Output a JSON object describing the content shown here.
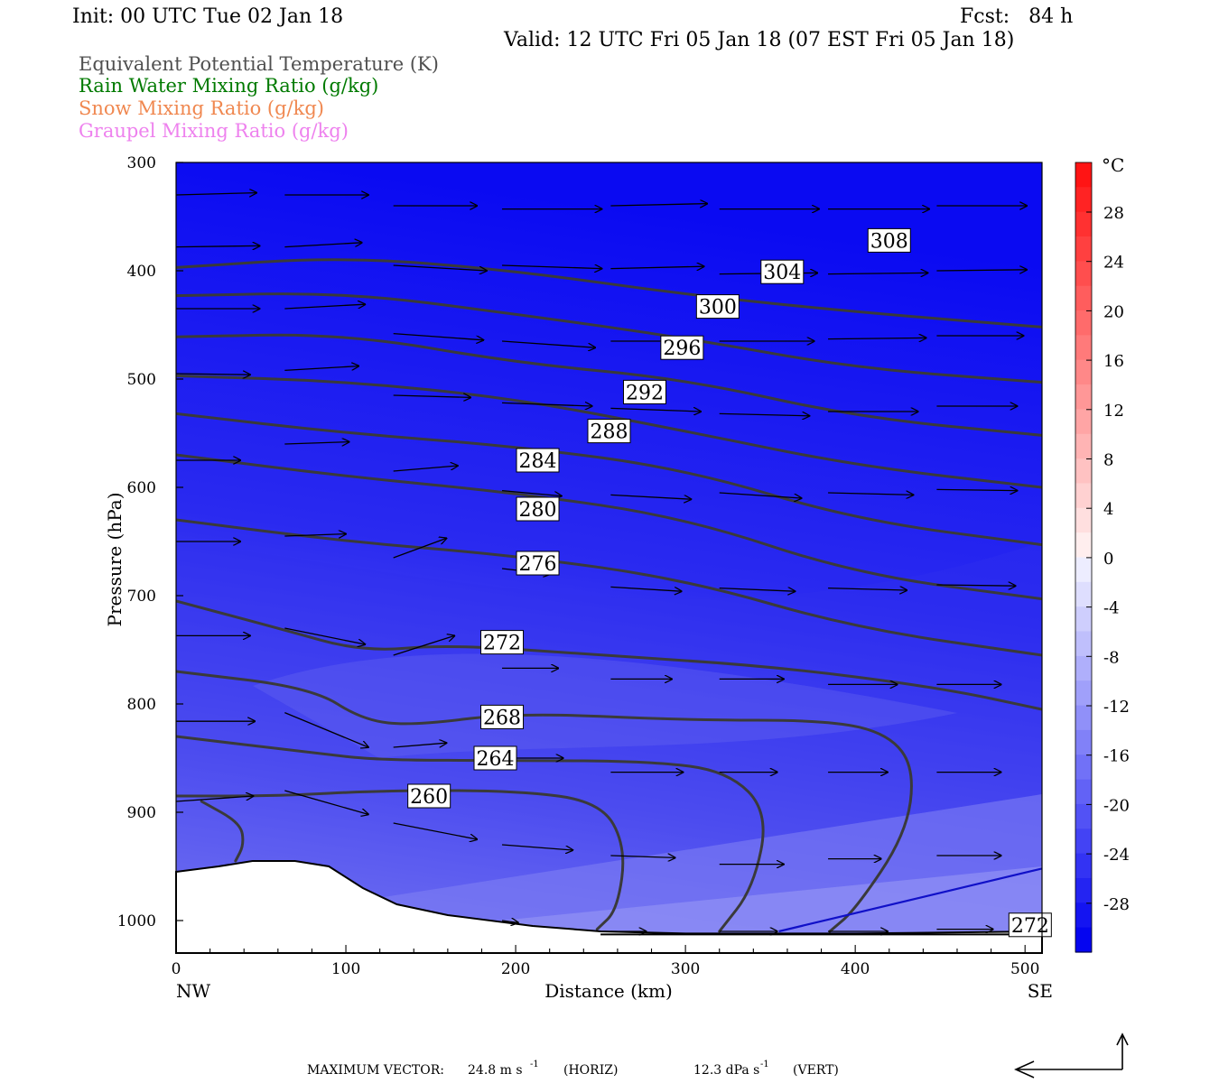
{
  "header": {
    "init": "Init: 00 UTC Tue 02 Jan 18",
    "fcst": "Fcst:   84 h",
    "valid": "Valid: 12 UTC Fri 05 Jan 18 (07 EST Fri 05 Jan 18)"
  },
  "legend": [
    {
      "label": "Equivalent Potential Temperature (K)",
      "color": "#505050"
    },
    {
      "label": "Rain Water Mixing Ratio (g/kg)",
      "color": "#007a00"
    },
    {
      "label": "Snow Mixing Ratio (g/kg)",
      "color": "#f08850"
    },
    {
      "label": "Graupel Mixing Ratio (g/kg)",
      "color": "#ee82ee"
    }
  ],
  "axes": {
    "ylabel": "Pressure (hPa)",
    "xlabel": "Distance (km)",
    "left_end": "NW",
    "right_end": "SE"
  },
  "colorbar": {
    "unit": "°C",
    "ticks": [
      "28",
      "24",
      "20",
      "16",
      "12",
      "8",
      "4",
      "0",
      "-4",
      "-8",
      "-12",
      "-16",
      "-20",
      "-24",
      "-28"
    ]
  },
  "footer": {
    "max_vector_label": "MAXIMUM VECTOR:",
    "horiz": "24.8 m s",
    "horiz_unit": "(HORIZ)",
    "vert": "12.3 dPa s",
    "vert_unit": "(VERT)",
    "exponent": "-1"
  },
  "chart_data": {
    "type": "heatmap",
    "x_range": [
      0,
      510
    ],
    "y_range": [
      300,
      1030
    ],
    "x_ticks": [
      0,
      100,
      200,
      300,
      400,
      500
    ],
    "y_ticks": [
      300,
      400,
      500,
      600,
      700,
      800,
      900,
      1000
    ],
    "contour_labels": [
      {
        "label": "308",
        "x": 420,
        "p": 372
      },
      {
        "label": "304",
        "x": 357,
        "p": 401
      },
      {
        "label": "300",
        "x": 319,
        "p": 433
      },
      {
        "label": "296",
        "x": 298,
        "p": 471
      },
      {
        "label": "292",
        "x": 276,
        "p": 512
      },
      {
        "label": "288",
        "x": 255,
        "p": 548
      },
      {
        "label": "284",
        "x": 213,
        "p": 575
      },
      {
        "label": "280",
        "x": 213,
        "p": 620
      },
      {
        "label": "276",
        "x": 213,
        "p": 670
      },
      {
        "label": "272",
        "x": 192,
        "p": 743
      },
      {
        "label": "268",
        "x": 192,
        "p": 812
      },
      {
        "label": "264",
        "x": 188,
        "p": 850
      },
      {
        "label": "260",
        "x": 149,
        "p": 885
      },
      {
        "label": "272",
        "x": 503,
        "p": 1004
      }
    ],
    "theta_e_lines": [
      {
        "k": 300,
        "pts": [
          [
            0,
            397
          ],
          [
            100,
            387
          ],
          [
            200,
            400
          ],
          [
            300,
            422
          ],
          [
            400,
            438
          ],
          [
            510,
            452
          ]
        ]
      },
      {
        "k": 296,
        "pts": [
          [
            0,
            423
          ],
          [
            100,
            420
          ],
          [
            200,
            440
          ],
          [
            300,
            462
          ],
          [
            400,
            490
          ],
          [
            510,
            503
          ]
        ]
      },
      {
        "k": 292,
        "pts": [
          [
            0,
            461
          ],
          [
            100,
            458
          ],
          [
            200,
            485
          ],
          [
            300,
            500
          ],
          [
            400,
            535
          ],
          [
            510,
            552
          ]
        ]
      },
      {
        "k": 288,
        "pts": [
          [
            0,
            497
          ],
          [
            100,
            502
          ],
          [
            200,
            518
          ],
          [
            300,
            548
          ],
          [
            400,
            580
          ],
          [
            510,
            600
          ]
        ]
      },
      {
        "k": 284,
        "pts": [
          [
            0,
            532
          ],
          [
            100,
            550
          ],
          [
            200,
            562
          ],
          [
            300,
            583
          ],
          [
            400,
            630
          ],
          [
            510,
            653
          ]
        ]
      },
      {
        "k": 280,
        "pts": [
          [
            0,
            570
          ],
          [
            100,
            590
          ],
          [
            200,
            605
          ],
          [
            300,
            628
          ],
          [
            400,
            680
          ],
          [
            510,
            703
          ]
        ]
      },
      {
        "k": 276,
        "pts": [
          [
            0,
            630
          ],
          [
            100,
            650
          ],
          [
            200,
            663
          ],
          [
            300,
            685
          ],
          [
            400,
            730
          ],
          [
            510,
            755
          ]
        ]
      },
      {
        "k": 272,
        "pts": [
          [
            0,
            705
          ],
          [
            60,
            730
          ],
          [
            110,
            752
          ],
          [
            160,
            745
          ],
          [
            250,
            755
          ],
          [
            350,
            765
          ],
          [
            450,
            785
          ],
          [
            510,
            805
          ]
        ]
      },
      {
        "k": 268,
        "pts": [
          [
            0,
            770
          ],
          [
            80,
            785
          ],
          [
            110,
            815
          ],
          [
            140,
            820
          ],
          [
            200,
            808
          ],
          [
            300,
            815
          ],
          [
            385,
            815
          ],
          [
            420,
            828
          ],
          [
            435,
            860
          ],
          [
            430,
            920
          ],
          [
            400,
            990
          ],
          [
            385,
            1010
          ]
        ]
      },
      {
        "k": 264,
        "pts": [
          [
            0,
            830
          ],
          [
            80,
            845
          ],
          [
            120,
            852
          ],
          [
            200,
            852
          ],
          [
            280,
            853
          ],
          [
            325,
            862
          ],
          [
            349,
            900
          ],
          [
            340,
            970
          ],
          [
            320,
            1010
          ]
        ]
      },
      {
        "k": 260,
        "pts": [
          [
            0,
            885
          ],
          [
            60,
            885
          ],
          [
            120,
            880
          ],
          [
            200,
            880
          ],
          [
            250,
            890
          ],
          [
            265,
            932
          ],
          [
            260,
            990
          ],
          [
            248,
            1008
          ]
        ]
      },
      {
        "k": 256,
        "pts": [
          [
            15,
            890
          ],
          [
            38,
            910
          ],
          [
            40,
            930
          ],
          [
            35,
            945
          ]
        ]
      }
    ],
    "zero_isotherm": [
      [
        355,
        1010
      ],
      [
        510,
        952
      ]
    ],
    "terrain_p": [
      [
        0,
        955
      ],
      [
        25,
        950
      ],
      [
        45,
        945
      ],
      [
        70,
        945
      ],
      [
        90,
        950
      ],
      [
        110,
        970
      ],
      [
        130,
        985
      ],
      [
        160,
        995
      ],
      [
        210,
        1005
      ],
      [
        250,
        1010
      ],
      [
        300,
        1012
      ],
      [
        400,
        1012
      ],
      [
        510,
        1010
      ]
    ],
    "wind_vectors": [
      {
        "x": 0,
        "p": 330,
        "dx": 50,
        "dp": -2
      },
      {
        "x": 64,
        "p": 330,
        "dx": 52,
        "dp": 0
      },
      {
        "x": 0,
        "p": 378,
        "dx": 52,
        "dp": -1
      },
      {
        "x": 64,
        "p": 378,
        "dx": 48,
        "dp": -4
      },
      {
        "x": 0,
        "p": 435,
        "dx": 52,
        "dp": 0
      },
      {
        "x": 64,
        "p": 435,
        "dx": 50,
        "dp": -4
      },
      {
        "x": 0,
        "p": 495,
        "dx": 46,
        "dp": 1
      },
      {
        "x": 64,
        "p": 492,
        "dx": 46,
        "dp": -4
      },
      {
        "x": 0,
        "p": 575,
        "dx": 40,
        "dp": 0
      },
      {
        "x": 64,
        "p": 560,
        "dx": 40,
        "dp": -2
      },
      {
        "x": 0,
        "p": 650,
        "dx": 40,
        "dp": 0
      },
      {
        "x": 64,
        "p": 645,
        "dx": 38,
        "dp": -2
      },
      {
        "x": 0,
        "p": 737,
        "dx": 46,
        "dp": 0
      },
      {
        "x": 64,
        "p": 730,
        "dx": 50,
        "dp": 15
      },
      {
        "x": 0,
        "p": 816,
        "dx": 49,
        "dp": 0
      },
      {
        "x": 64,
        "p": 808,
        "dx": 52,
        "dp": 32
      },
      {
        "x": 0,
        "p": 890,
        "dx": 48,
        "dp": -5
      },
      {
        "x": 64,
        "p": 880,
        "dx": 52,
        "dp": 22
      },
      {
        "x": 128,
        "p": 340,
        "dx": 52,
        "dp": 0
      },
      {
        "x": 128,
        "p": 395,
        "dx": 58,
        "dp": 5
      },
      {
        "x": 128,
        "p": 458,
        "dx": 56,
        "dp": 6
      },
      {
        "x": 128,
        "p": 515,
        "dx": 48,
        "dp": 2
      },
      {
        "x": 128,
        "p": 585,
        "dx": 40,
        "dp": -5
      },
      {
        "x": 128,
        "p": 665,
        "dx": 33,
        "dp": -18
      },
      {
        "x": 128,
        "p": 755,
        "dx": 38,
        "dp": -18
      },
      {
        "x": 128,
        "p": 840,
        "dx": 33,
        "dp": -4
      },
      {
        "x": 128,
        "p": 910,
        "dx": 52,
        "dp": 15
      },
      {
        "x": 192,
        "p": 343,
        "dx": 62,
        "dp": 0
      },
      {
        "x": 192,
        "p": 395,
        "dx": 62,
        "dp": 3
      },
      {
        "x": 192,
        "p": 465,
        "dx": 58,
        "dp": 6
      },
      {
        "x": 192,
        "p": 522,
        "dx": 56,
        "dp": 3
      },
      {
        "x": 192,
        "p": 603,
        "dx": 37,
        "dp": 5
      },
      {
        "x": 192,
        "p": 675,
        "dx": 30,
        "dp": 5
      },
      {
        "x": 192,
        "p": 767,
        "dx": 35,
        "dp": 0
      },
      {
        "x": 192,
        "p": 850,
        "dx": 38,
        "dp": 0
      },
      {
        "x": 192,
        "p": 930,
        "dx": 44,
        "dp": 5
      },
      {
        "x": 192,
        "p": 1000,
        "dx": 10,
        "dp": 2
      },
      {
        "x": 256,
        "p": 340,
        "dx": 60,
        "dp": -2
      },
      {
        "x": 256,
        "p": 398,
        "dx": 58,
        "dp": -2
      },
      {
        "x": 256,
        "p": 465,
        "dx": 55,
        "dp": 0
      },
      {
        "x": 256,
        "p": 527,
        "dx": 56,
        "dp": 3
      },
      {
        "x": 256,
        "p": 607,
        "dx": 50,
        "dp": 4
      },
      {
        "x": 256,
        "p": 692,
        "dx": 44,
        "dp": 4
      },
      {
        "x": 256,
        "p": 777,
        "dx": 38,
        "dp": 0
      },
      {
        "x": 256,
        "p": 863,
        "dx": 45,
        "dp": 0
      },
      {
        "x": 256,
        "p": 940,
        "dx": 40,
        "dp": 2
      },
      {
        "x": 256,
        "p": 1010,
        "dx": 22,
        "dp": 0
      },
      {
        "x": 320,
        "p": 343,
        "dx": 62,
        "dp": 0
      },
      {
        "x": 320,
        "p": 403,
        "dx": 61,
        "dp": -1
      },
      {
        "x": 320,
        "p": 465,
        "dx": 59,
        "dp": 0
      },
      {
        "x": 320,
        "p": 532,
        "dx": 56,
        "dp": 2
      },
      {
        "x": 320,
        "p": 605,
        "dx": 51,
        "dp": 5
      },
      {
        "x": 320,
        "p": 693,
        "dx": 47,
        "dp": 3
      },
      {
        "x": 320,
        "p": 777,
        "dx": 40,
        "dp": 0
      },
      {
        "x": 320,
        "p": 863,
        "dx": 36,
        "dp": 0
      },
      {
        "x": 320,
        "p": 948,
        "dx": 40,
        "dp": 0
      },
      {
        "x": 320,
        "p": 1010,
        "dx": 36,
        "dp": 0
      },
      {
        "x": 384,
        "p": 343,
        "dx": 63,
        "dp": 0
      },
      {
        "x": 384,
        "p": 403,
        "dx": 62,
        "dp": -1
      },
      {
        "x": 384,
        "p": 463,
        "dx": 61,
        "dp": -1
      },
      {
        "x": 384,
        "p": 530,
        "dx": 56,
        "dp": 0
      },
      {
        "x": 384,
        "p": 605,
        "dx": 53,
        "dp": 2
      },
      {
        "x": 384,
        "p": 693,
        "dx": 49,
        "dp": 2
      },
      {
        "x": 384,
        "p": 782,
        "dx": 43,
        "dp": 0
      },
      {
        "x": 384,
        "p": 863,
        "dx": 37,
        "dp": 0
      },
      {
        "x": 384,
        "p": 943,
        "dx": 33,
        "dp": 0
      },
      {
        "x": 384,
        "p": 1010,
        "dx": 37,
        "dp": 0
      },
      {
        "x": 448,
        "p": 340,
        "dx": 56,
        "dp": 0
      },
      {
        "x": 448,
        "p": 400,
        "dx": 56,
        "dp": -1
      },
      {
        "x": 448,
        "p": 460,
        "dx": 54,
        "dp": 0
      },
      {
        "x": 448,
        "p": 525,
        "dx": 50,
        "dp": 0
      },
      {
        "x": 448,
        "p": 602,
        "dx": 50,
        "dp": 1
      },
      {
        "x": 448,
        "p": 690,
        "dx": 49,
        "dp": 1
      },
      {
        "x": 448,
        "p": 782,
        "dx": 40,
        "dp": 0
      },
      {
        "x": 448,
        "p": 863,
        "dx": 40,
        "dp": 0
      },
      {
        "x": 448,
        "p": 940,
        "dx": 40,
        "dp": 0
      },
      {
        "x": 448,
        "p": 1008,
        "dx": 35,
        "dp": 0
      }
    ]
  }
}
